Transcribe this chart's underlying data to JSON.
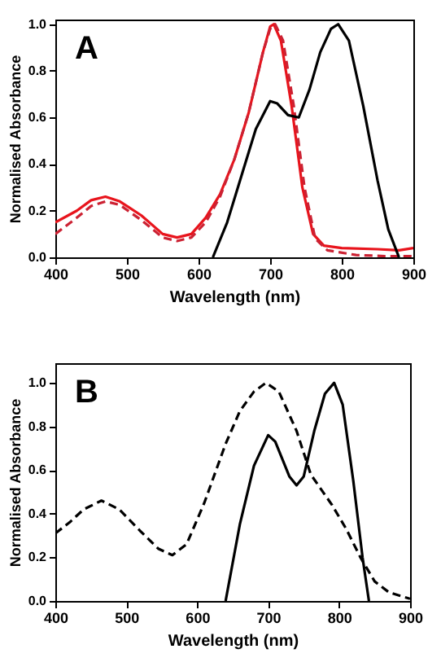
{
  "chart_data": [
    {
      "type": "line",
      "xlabel": "Wavelength (nm)",
      "ylabel": "Normalised Absorbance",
      "annotations": [
        "A"
      ],
      "xlim": [
        400,
        900
      ],
      "ylim": [
        0,
        1.02
      ],
      "xticks": [
        400,
        500,
        600,
        700,
        800,
        900
      ],
      "yticks": [
        {
          "value": 0,
          "label": "0.0"
        },
        0.2,
        0.4,
        0.6,
        0.8,
        {
          "value": 1,
          "label": "1.0"
        }
      ],
      "grid": false,
      "series": [
        {
          "color": "#e8141c",
          "line_style": "solid",
          "x": [
            400,
            430,
            450,
            470,
            490,
            520,
            550,
            570,
            590,
            610,
            630,
            650,
            670,
            690,
            700,
            705,
            715,
            730,
            745,
            760,
            775,
            800,
            850,
            880,
            900
          ],
          "values": [
            0.15,
            0.2,
            0.245,
            0.26,
            0.24,
            0.18,
            0.1,
            0.085,
            0.1,
            0.17,
            0.27,
            0.42,
            0.62,
            0.88,
            0.99,
            1.0,
            0.93,
            0.65,
            0.3,
            0.1,
            0.05,
            0.04,
            0.035,
            0.03,
            0.04
          ]
        },
        {
          "color": "#cc2233",
          "line_style": "dashed",
          "x": [
            400,
            430,
            450,
            470,
            490,
            520,
            550,
            570,
            590,
            610,
            630,
            650,
            670,
            690,
            700,
            707,
            718,
            733,
            748,
            763,
            780,
            820,
            860,
            900
          ],
          "values": [
            0.1,
            0.17,
            0.22,
            0.24,
            0.225,
            0.16,
            0.085,
            0.07,
            0.085,
            0.15,
            0.26,
            0.42,
            0.62,
            0.88,
            0.98,
            1.0,
            0.93,
            0.65,
            0.3,
            0.08,
            0.03,
            0.01,
            0.005,
            0.005
          ]
        },
        {
          "color": "#000000",
          "line_style": "solid",
          "x": [
            620,
            640,
            660,
            680,
            700,
            710,
            725,
            740,
            755,
            770,
            785,
            795,
            810,
            830,
            850,
            865,
            880
          ],
          "values": [
            0.0,
            0.15,
            0.35,
            0.55,
            0.67,
            0.66,
            0.61,
            0.6,
            0.72,
            0.88,
            0.98,
            1.0,
            0.93,
            0.65,
            0.33,
            0.12,
            0.0
          ]
        }
      ]
    },
    {
      "type": "line",
      "xlabel": "Wavelength (nm)",
      "ylabel": "Normalised Absorbance",
      "annotations": [
        "B"
      ],
      "xlim": [
        400,
        900
      ],
      "ylim": [
        0,
        1.09
      ],
      "xticks": [
        400,
        500,
        600,
        700,
        800,
        900
      ],
      "yticks": [
        {
          "value": 0,
          "label": "0.0"
        },
        0.2,
        0.4,
        0.6,
        0.8,
        {
          "value": 1,
          "label": "1.0"
        }
      ],
      "grid": false,
      "series": [
        {
          "color": "#000000",
          "line_style": "dashed",
          "x": [
            400,
            420,
            440,
            465,
            490,
            520,
            545,
            565,
            585,
            610,
            640,
            660,
            680,
            697,
            715,
            740,
            760,
            790,
            810,
            830,
            850,
            870,
            900
          ],
          "values": [
            0.31,
            0.36,
            0.42,
            0.46,
            0.42,
            0.32,
            0.24,
            0.21,
            0.26,
            0.45,
            0.72,
            0.87,
            0.96,
            1.0,
            0.96,
            0.78,
            0.58,
            0.44,
            0.33,
            0.2,
            0.09,
            0.04,
            0.01
          ]
        },
        {
          "color": "#000000",
          "line_style": "solid",
          "x": [
            640,
            660,
            680,
            700,
            710,
            730,
            740,
            750,
            765,
            780,
            793,
            805,
            820,
            833,
            842
          ],
          "values": [
            0.0,
            0.35,
            0.62,
            0.76,
            0.73,
            0.57,
            0.53,
            0.57,
            0.78,
            0.95,
            1.0,
            0.9,
            0.55,
            0.2,
            0.0
          ]
        }
      ]
    }
  ]
}
